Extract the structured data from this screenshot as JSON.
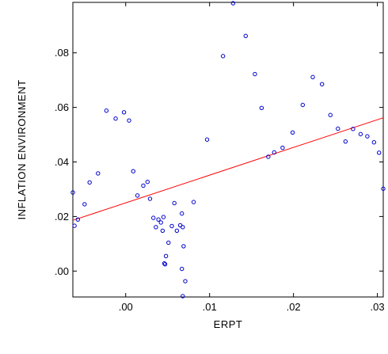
{
  "chart_data": {
    "type": "scatter",
    "xlabel": "ERPT",
    "ylabel": "INFLATION ENVIRONMENT",
    "xlim": [
      -0.0063,
      0.0307
    ],
    "ylim": [
      -0.0095,
      0.0985
    ],
    "x_ticks": [
      {
        "value": 0.0,
        "label": ".00"
      },
      {
        "value": 0.01,
        "label": ".01"
      },
      {
        "value": 0.02,
        "label": ".02"
      },
      {
        "value": 0.03,
        "label": ".03"
      }
    ],
    "y_ticks": [
      {
        "value": 0.0,
        "label": ".00"
      },
      {
        "value": 0.02,
        "label": ".02"
      },
      {
        "value": 0.04,
        "label": ".04"
      },
      {
        "value": 0.06,
        "label": ".06"
      },
      {
        "value": 0.08,
        "label": ".08"
      }
    ],
    "grid": false,
    "marker_color": "#0000cc",
    "line_color": "#ff0000",
    "fit_line": {
      "x": [
        -0.0063,
        0.0307
      ],
      "y": [
        0.0186,
        0.0562
      ]
    },
    "points": [
      [
        -0.0063,
        0.0288
      ],
      [
        -0.0061,
        0.0166
      ],
      [
        -0.0057,
        0.0189
      ],
      [
        -0.0049,
        0.0245
      ],
      [
        -0.0043,
        0.0325
      ],
      [
        -0.0033,
        0.0358
      ],
      [
        -0.0023,
        0.0588
      ],
      [
        -0.0012,
        0.0559
      ],
      [
        -0.0002,
        0.0582
      ],
      [
        0.0004,
        0.0552
      ],
      [
        0.0009,
        0.0366
      ],
      [
        0.0014,
        0.0277
      ],
      [
        0.0021,
        0.0313
      ],
      [
        0.0026,
        0.0327
      ],
      [
        0.0029,
        0.0265
      ],
      [
        0.0033,
        0.0195
      ],
      [
        0.0036,
        0.0161
      ],
      [
        0.0039,
        0.0189
      ],
      [
        0.0042,
        0.0178
      ],
      [
        0.0045,
        0.0198
      ],
      [
        0.0044,
        0.0148
      ],
      [
        0.0046,
        0.0028
      ],
      [
        0.0047,
        0.0025
      ],
      [
        0.0048,
        0.0055
      ],
      [
        0.0051,
        0.0104
      ],
      [
        0.0055,
        0.0165
      ],
      [
        0.0058,
        0.0249
      ],
      [
        0.0061,
        0.0148
      ],
      [
        0.0065,
        0.0168
      ],
      [
        0.0067,
        0.0211
      ],
      [
        0.0068,
        0.0161
      ],
      [
        0.0067,
        0.0008
      ],
      [
        0.0069,
        0.0091
      ],
      [
        0.0071,
        -0.0037
      ],
      [
        0.0068,
        -0.0092
      ],
      [
        0.0081,
        0.0253
      ],
      [
        0.0097,
        0.0482
      ],
      [
        0.0116,
        0.0788
      ],
      [
        0.0128,
        0.0982
      ],
      [
        0.0143,
        0.0862
      ],
      [
        0.0154,
        0.0722
      ],
      [
        0.0162,
        0.0598
      ],
      [
        0.017,
        0.0419
      ],
      [
        0.0177,
        0.0435
      ],
      [
        0.0187,
        0.0452
      ],
      [
        0.0199,
        0.0508
      ],
      [
        0.0211,
        0.0609
      ],
      [
        0.0223,
        0.0711
      ],
      [
        0.0234,
        0.0685
      ],
      [
        0.0244,
        0.0572
      ],
      [
        0.0253,
        0.0522
      ],
      [
        0.0262,
        0.0475
      ],
      [
        0.0271,
        0.0521
      ],
      [
        0.028,
        0.0502
      ],
      [
        0.0288,
        0.0494
      ],
      [
        0.0296,
        0.0472
      ],
      [
        0.0302,
        0.0434
      ],
      [
        0.0307,
        0.0302
      ]
    ]
  }
}
